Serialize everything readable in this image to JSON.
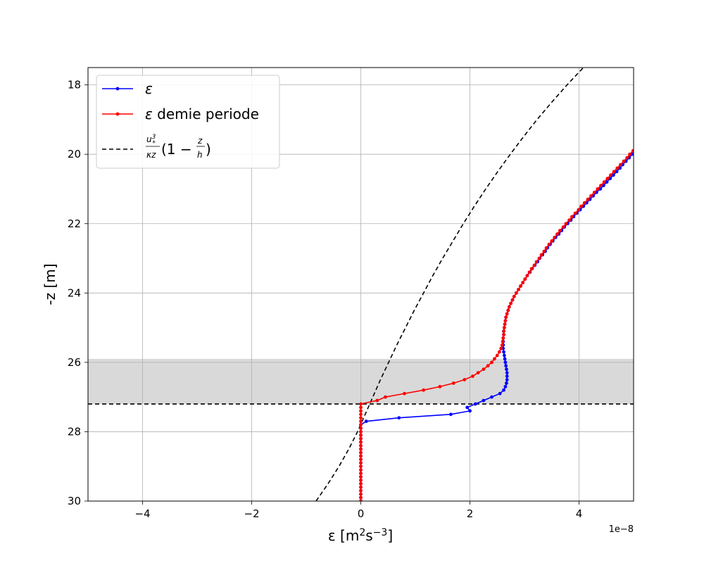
{
  "chart_data": {
    "type": "line",
    "xlabel": "ε [m²s⁻³]",
    "ylabel": "-z [m]",
    "x_offset_label": "1e−8",
    "xlim": [
      -5e-08,
      5e-08
    ],
    "ylim": [
      30,
      17.5
    ],
    "y_inverted": true,
    "grid": true,
    "legend_position": "upper left",
    "x_ticks": [
      -4e-08,
      -2e-08,
      0,
      2e-08,
      4e-08
    ],
    "x_tick_labels": [
      "−4",
      "−2",
      "0",
      "2",
      "4"
    ],
    "y_ticks": [
      18,
      20,
      22,
      24,
      26,
      28,
      30
    ],
    "y_tick_labels": [
      "18",
      "20",
      "22",
      "24",
      "26",
      "28",
      "30"
    ],
    "shaded_band": {
      "y_from": 25.9,
      "y_to": 27.2,
      "color": "#d9d9d9"
    },
    "hline": {
      "y": 27.2,
      "style": "dashed",
      "color": "#000000"
    },
    "series": [
      {
        "name": "ε",
        "color": "#0000ff",
        "marker": "dot",
        "points": [
          [
            0,
            30.0
          ],
          [
            0,
            29.9
          ],
          [
            0,
            29.8
          ],
          [
            0,
            29.7
          ],
          [
            0,
            29.6
          ],
          [
            0,
            29.5
          ],
          [
            0,
            29.4
          ],
          [
            0,
            29.3
          ],
          [
            0,
            29.2
          ],
          [
            0,
            29.1
          ],
          [
            0,
            29.0
          ],
          [
            0,
            28.9
          ],
          [
            0,
            28.8
          ],
          [
            0,
            28.7
          ],
          [
            0,
            28.6
          ],
          [
            0,
            28.5
          ],
          [
            0,
            28.4
          ],
          [
            0,
            28.3
          ],
          [
            0,
            28.2
          ],
          [
            0,
            28.1
          ],
          [
            0,
            28.0
          ],
          [
            0,
            27.9
          ],
          [
            0,
            27.8
          ],
          [
            1e-09,
            27.7
          ],
          [
            7e-09,
            27.6
          ],
          [
            1.65e-08,
            27.5
          ],
          [
            2e-08,
            27.4
          ],
          [
            1.95e-08,
            27.3
          ],
          [
            2.1e-08,
            27.2
          ],
          [
            2.25e-08,
            27.1
          ],
          [
            2.4e-08,
            27.0
          ],
          [
            2.55e-08,
            26.9
          ],
          [
            2.62e-08,
            26.8
          ],
          [
            2.65e-08,
            26.7
          ],
          [
            2.67e-08,
            26.6
          ],
          [
            2.68e-08,
            26.5
          ],
          [
            2.68e-08,
            26.4
          ],
          [
            2.68e-08,
            26.3
          ],
          [
            2.67e-08,
            26.2
          ],
          [
            2.66e-08,
            26.1
          ],
          [
            2.65e-08,
            26.0
          ],
          [
            2.64e-08,
            25.9
          ],
          [
            2.63e-08,
            25.8
          ],
          [
            2.62e-08,
            25.7
          ],
          [
            2.61e-08,
            25.6
          ],
          [
            2.61e-08,
            25.5
          ],
          [
            2.61e-08,
            25.4
          ],
          [
            2.61e-08,
            25.3
          ],
          [
            2.62e-08,
            25.2
          ],
          [
            2.62e-08,
            25.1
          ],
          [
            2.63e-08,
            25.0
          ],
          [
            2.64e-08,
            24.9
          ],
          [
            2.65e-08,
            24.8
          ],
          [
            2.66e-08,
            24.7
          ],
          [
            2.68e-08,
            24.6
          ],
          [
            2.7e-08,
            24.5
          ],
          [
            2.72e-08,
            24.4
          ],
          [
            2.75e-08,
            24.3
          ],
          [
            2.78e-08,
            24.2
          ],
          [
            2.81e-08,
            24.1
          ],
          [
            2.85e-08,
            24.0
          ],
          [
            2.89e-08,
            23.9
          ],
          [
            2.93e-08,
            23.8
          ],
          [
            2.97e-08,
            23.7
          ],
          [
            3.01e-08,
            23.6
          ],
          [
            3.05e-08,
            23.5
          ],
          [
            3.1e-08,
            23.4
          ],
          [
            3.14e-08,
            23.3
          ],
          [
            3.19e-08,
            23.2
          ],
          [
            3.24e-08,
            23.1
          ],
          [
            3.28e-08,
            23.0
          ],
          [
            3.33e-08,
            22.9
          ],
          [
            3.38e-08,
            22.8
          ],
          [
            3.42e-08,
            22.7
          ],
          [
            3.47e-08,
            22.6
          ],
          [
            3.52e-08,
            22.5
          ],
          [
            3.57e-08,
            22.4
          ],
          [
            3.63e-08,
            22.3
          ],
          [
            3.68e-08,
            22.2
          ],
          [
            3.73e-08,
            22.1
          ],
          [
            3.79e-08,
            22.0
          ],
          [
            3.85e-08,
            21.9
          ],
          [
            3.9e-08,
            21.8
          ],
          [
            3.96e-08,
            21.7
          ],
          [
            4.02e-08,
            21.6
          ],
          [
            4.08e-08,
            21.5
          ],
          [
            4.14e-08,
            21.4
          ],
          [
            4.2e-08,
            21.3
          ],
          [
            4.26e-08,
            21.2
          ],
          [
            4.32e-08,
            21.1
          ],
          [
            4.39e-08,
            21.0
          ],
          [
            4.45e-08,
            20.9
          ],
          [
            4.51e-08,
            20.8
          ],
          [
            4.57e-08,
            20.7
          ],
          [
            4.63e-08,
            20.6
          ],
          [
            4.69e-08,
            20.5
          ],
          [
            4.75e-08,
            20.4
          ],
          [
            4.8e-08,
            20.3
          ],
          [
            4.86e-08,
            20.2
          ],
          [
            4.92e-08,
            20.1
          ],
          [
            4.97e-08,
            20.0
          ],
          [
            5.03e-08,
            19.9
          ]
        ]
      },
      {
        "name": "ε demie periode",
        "color": "#ff0000",
        "marker": "dot",
        "points": [
          [
            0,
            30.0
          ],
          [
            0,
            29.9
          ],
          [
            0,
            29.8
          ],
          [
            0,
            29.7
          ],
          [
            0,
            29.6
          ],
          [
            0,
            29.5
          ],
          [
            0,
            29.4
          ],
          [
            0,
            29.3
          ],
          [
            0,
            29.2
          ],
          [
            0,
            29.1
          ],
          [
            0,
            29.0
          ],
          [
            0,
            28.9
          ],
          [
            0,
            28.8
          ],
          [
            0,
            28.7
          ],
          [
            0,
            28.6
          ],
          [
            0,
            28.5
          ],
          [
            0,
            28.4
          ],
          [
            0,
            28.3
          ],
          [
            0,
            28.2
          ],
          [
            0,
            28.1
          ],
          [
            0,
            28.0
          ],
          [
            0,
            27.9
          ],
          [
            0,
            27.8
          ],
          [
            0,
            27.7
          ],
          [
            0,
            27.6
          ],
          [
            0,
            27.5
          ],
          [
            0,
            27.4
          ],
          [
            0,
            27.3
          ],
          [
            0,
            27.2
          ],
          [
            3e-09,
            27.1
          ],
          [
            4.5e-09,
            27.0
          ],
          [
            8e-09,
            26.9
          ],
          [
            1.15e-08,
            26.8
          ],
          [
            1.45e-08,
            26.7
          ],
          [
            1.7e-08,
            26.6
          ],
          [
            1.9e-08,
            26.5
          ],
          [
            2.05e-08,
            26.4
          ],
          [
            2.15e-08,
            26.3
          ],
          [
            2.25e-08,
            26.2
          ],
          [
            2.33e-08,
            26.1
          ],
          [
            2.4e-08,
            26.0
          ],
          [
            2.45e-08,
            25.9
          ],
          [
            2.5e-08,
            25.8
          ],
          [
            2.54e-08,
            25.7
          ],
          [
            2.57e-08,
            25.6
          ],
          [
            2.59e-08,
            25.5
          ],
          [
            2.6e-08,
            25.4
          ],
          [
            2.61e-08,
            25.3
          ],
          [
            2.62e-08,
            25.2
          ],
          [
            2.62e-08,
            25.1
          ],
          [
            2.63e-08,
            25.0
          ],
          [
            2.64e-08,
            24.9
          ],
          [
            2.65e-08,
            24.8
          ],
          [
            2.66e-08,
            24.7
          ],
          [
            2.68e-08,
            24.6
          ],
          [
            2.7e-08,
            24.5
          ],
          [
            2.72e-08,
            24.4
          ],
          [
            2.75e-08,
            24.3
          ],
          [
            2.78e-08,
            24.2
          ],
          [
            2.81e-08,
            24.1
          ],
          [
            2.85e-08,
            24.0
          ],
          [
            2.89e-08,
            23.9
          ],
          [
            2.93e-08,
            23.8
          ],
          [
            2.97e-08,
            23.7
          ],
          [
            3.01e-08,
            23.6
          ],
          [
            3.05e-08,
            23.5
          ],
          [
            3.09e-08,
            23.4
          ],
          [
            3.13e-08,
            23.3
          ],
          [
            3.18e-08,
            23.2
          ],
          [
            3.22e-08,
            23.1
          ],
          [
            3.27e-08,
            23.0
          ],
          [
            3.31e-08,
            22.9
          ],
          [
            3.36e-08,
            22.8
          ],
          [
            3.4e-08,
            22.7
          ],
          [
            3.45e-08,
            22.6
          ],
          [
            3.5e-08,
            22.5
          ],
          [
            3.55e-08,
            22.4
          ],
          [
            3.6e-08,
            22.3
          ],
          [
            3.65e-08,
            22.2
          ],
          [
            3.71e-08,
            22.1
          ],
          [
            3.76e-08,
            22.0
          ],
          [
            3.82e-08,
            21.9
          ],
          [
            3.87e-08,
            21.8
          ],
          [
            3.93e-08,
            21.7
          ],
          [
            3.99e-08,
            21.6
          ],
          [
            4.04e-08,
            21.5
          ],
          [
            4.1e-08,
            21.4
          ],
          [
            4.16e-08,
            21.3
          ],
          [
            4.22e-08,
            21.2
          ],
          [
            4.28e-08,
            21.1
          ],
          [
            4.34e-08,
            21.0
          ],
          [
            4.4e-08,
            20.9
          ],
          [
            4.46e-08,
            20.8
          ],
          [
            4.52e-08,
            20.7
          ],
          [
            4.58e-08,
            20.6
          ],
          [
            4.64e-08,
            20.5
          ],
          [
            4.7e-08,
            20.4
          ],
          [
            4.76e-08,
            20.3
          ],
          [
            4.82e-08,
            20.2
          ],
          [
            4.88e-08,
            20.1
          ],
          [
            4.93e-08,
            20.0
          ],
          [
            4.99e-08,
            19.9
          ],
          [
            5.05e-08,
            19.8
          ]
        ]
      },
      {
        "name": "u*³/(κz)(1 − z/h)",
        "color": "#000000",
        "style": "dashed",
        "marker": "none",
        "points": [
          [
            -8.2e-09,
            30.0
          ],
          [
            -6e-09,
            29.5
          ],
          [
            -4e-09,
            29.0
          ],
          [
            -2.2e-09,
            28.5
          ],
          [
            -6e-10,
            28.0
          ],
          [
            8e-10,
            27.5
          ],
          [
            2.2e-09,
            27.0
          ],
          [
            3.6e-09,
            26.5
          ],
          [
            5.1e-09,
            26.0
          ],
          [
            6.6e-09,
            25.5
          ],
          [
            8.2e-09,
            25.0
          ],
          [
            9.8e-09,
            24.5
          ],
          [
            1.15e-08,
            24.0
          ],
          [
            1.32e-08,
            23.5
          ],
          [
            1.5e-08,
            23.0
          ],
          [
            1.69e-08,
            22.5
          ],
          [
            1.88e-08,
            22.0
          ],
          [
            2.08e-08,
            21.5
          ],
          [
            2.29e-08,
            21.0
          ],
          [
            2.51e-08,
            20.5
          ],
          [
            2.74e-08,
            20.0
          ],
          [
            2.98e-08,
            19.5
          ],
          [
            3.23e-08,
            19.0
          ],
          [
            3.5e-08,
            18.5
          ],
          [
            3.78e-08,
            18.0
          ],
          [
            4.08e-08,
            17.5
          ]
        ]
      }
    ]
  }
}
